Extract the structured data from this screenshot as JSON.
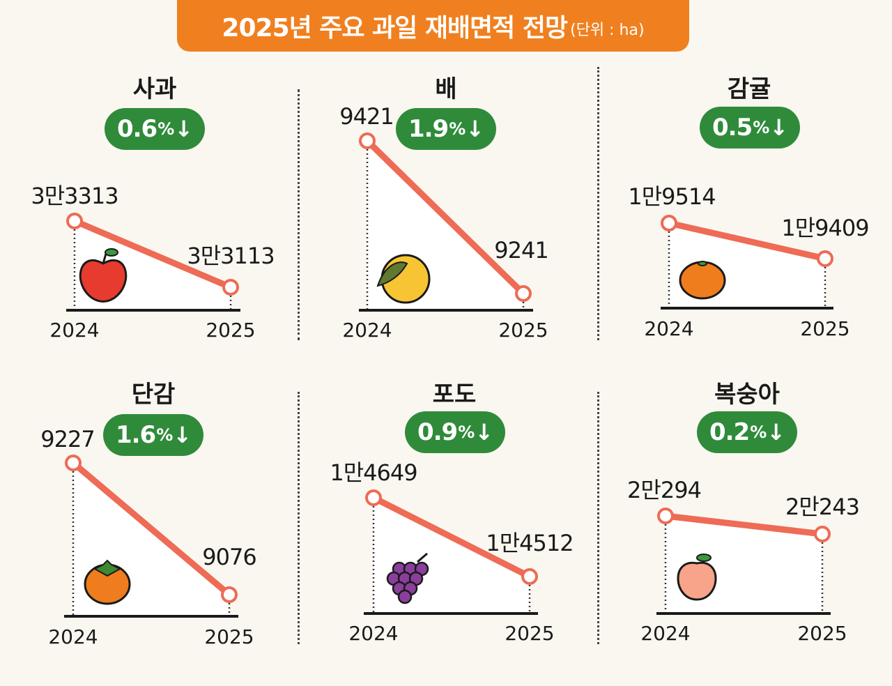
{
  "header": {
    "title": "2025년 주요 과일 재배면적 전망",
    "unit": "(단위 : ha)"
  },
  "colors": {
    "banner": "#f0801f",
    "badge": "#2f8b3a",
    "line": "#ee6b55",
    "axis": "#1a1a1a"
  },
  "chart_data": [
    {
      "type": "line",
      "name": "사과",
      "icon": "apple-icon",
      "x": [
        "2024",
        "2025"
      ],
      "values": [
        33313,
        33113
      ],
      "value_labels": [
        "3만3313",
        "3만3113"
      ],
      "change": "0.6",
      "unit": "%"
    },
    {
      "type": "line",
      "name": "배",
      "icon": "pear-icon",
      "x": [
        "2024",
        "2025"
      ],
      "values": [
        9421,
        9241
      ],
      "value_labels": [
        "9421",
        "9241"
      ],
      "change": "1.9",
      "unit": "%"
    },
    {
      "type": "line",
      "name": "감귤",
      "icon": "tangerine-icon",
      "x": [
        "2024",
        "2025"
      ],
      "values": [
        19514,
        19409
      ],
      "value_labels": [
        "1만9514",
        "1만9409"
      ],
      "change": "0.5",
      "unit": "%"
    },
    {
      "type": "line",
      "name": "단감",
      "icon": "persimmon-icon",
      "x": [
        "2024",
        "2025"
      ],
      "values": [
        9227,
        9076
      ],
      "value_labels": [
        "9227",
        "9076"
      ],
      "change": "1.6",
      "unit": "%"
    },
    {
      "type": "line",
      "name": "포도",
      "icon": "grape-icon",
      "x": [
        "2024",
        "2025"
      ],
      "values": [
        14649,
        14512
      ],
      "value_labels": [
        "1만4649",
        "1만4512"
      ],
      "change": "0.9",
      "unit": "%"
    },
    {
      "type": "line",
      "name": "복숭아",
      "icon": "peach-icon",
      "x": [
        "2024",
        "2025"
      ],
      "values": [
        20294,
        20243
      ],
      "value_labels": [
        "2만294",
        "2만243"
      ],
      "change": "0.2",
      "unit": "%"
    }
  ]
}
